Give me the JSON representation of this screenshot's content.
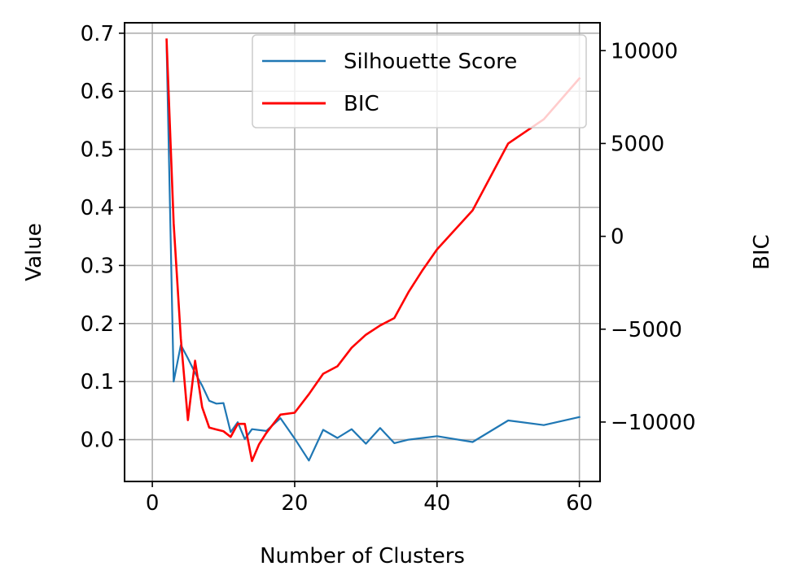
{
  "chart_data": {
    "type": "line",
    "xlabel": "Number of Clusters",
    "ylabel": "Value",
    "ylabel_right": "BIC",
    "xlim": [
      -3.9,
      62.9
    ],
    "ylim": [
      -0.072,
      0.718
    ],
    "ylim_right": [
      -13200,
      11500
    ],
    "xticks": [
      0,
      20,
      40,
      60
    ],
    "yticks": [
      0.0,
      0.1,
      0.2,
      0.3,
      0.4,
      0.5,
      0.6,
      0.7
    ],
    "yticks_right": [
      -10000,
      -5000,
      0,
      5000,
      10000
    ],
    "xtick_labels": [
      "0",
      "20",
      "40",
      "60"
    ],
    "ytick_labels": [
      "0.0",
      "0.1",
      "0.2",
      "0.3",
      "0.4",
      "0.5",
      "0.6",
      "0.7"
    ],
    "ytick_right_labels": [
      "−10000",
      "−5000",
      "0",
      "5000",
      "10000"
    ],
    "grid": true,
    "legend_position": "top-right",
    "series": [
      {
        "name": "Silhouette Score",
        "axis": "left",
        "color": "#1f77b4",
        "x": [
          2,
          3,
          4,
          5,
          6,
          7,
          8,
          9,
          10,
          11,
          12,
          13,
          14,
          16,
          18,
          20,
          22,
          24,
          26,
          28,
          30,
          32,
          34,
          36,
          38,
          40,
          45,
          50,
          55,
          60
        ],
        "y": [
          0.68,
          0.1,
          0.163,
          0.14,
          0.115,
          0.093,
          0.067,
          0.062,
          0.063,
          0.013,
          0.03,
          0.001,
          0.018,
          0.015,
          0.037,
          0.002,
          -0.036,
          0.017,
          0.003,
          0.018,
          -0.007,
          0.02,
          -0.006,
          0.0,
          0.003,
          0.006,
          -0.004,
          0.033,
          0.025,
          0.039
        ]
      },
      {
        "name": "BIC",
        "axis": "right",
        "color": "#ff0000",
        "x": [
          2,
          3,
          4,
          5,
          6,
          7,
          8,
          9,
          10,
          11,
          12,
          13,
          14,
          15,
          16,
          18,
          20,
          22,
          24,
          26,
          28,
          30,
          32,
          34,
          36,
          38,
          40,
          45,
          50,
          55,
          60
        ],
        "y": [
          10600,
          700,
          -5500,
          -9900,
          -6700,
          -9200,
          -10300,
          -10400,
          -10500,
          -10800,
          -10100,
          -10100,
          -12100,
          -11200,
          -10600,
          -9600,
          -9500,
          -8500,
          -7400,
          -7000,
          -6000,
          -5300,
          -4800,
          -4400,
          -3000,
          -1800,
          -700,
          1400,
          5000,
          6300,
          8500
        ]
      }
    ]
  }
}
